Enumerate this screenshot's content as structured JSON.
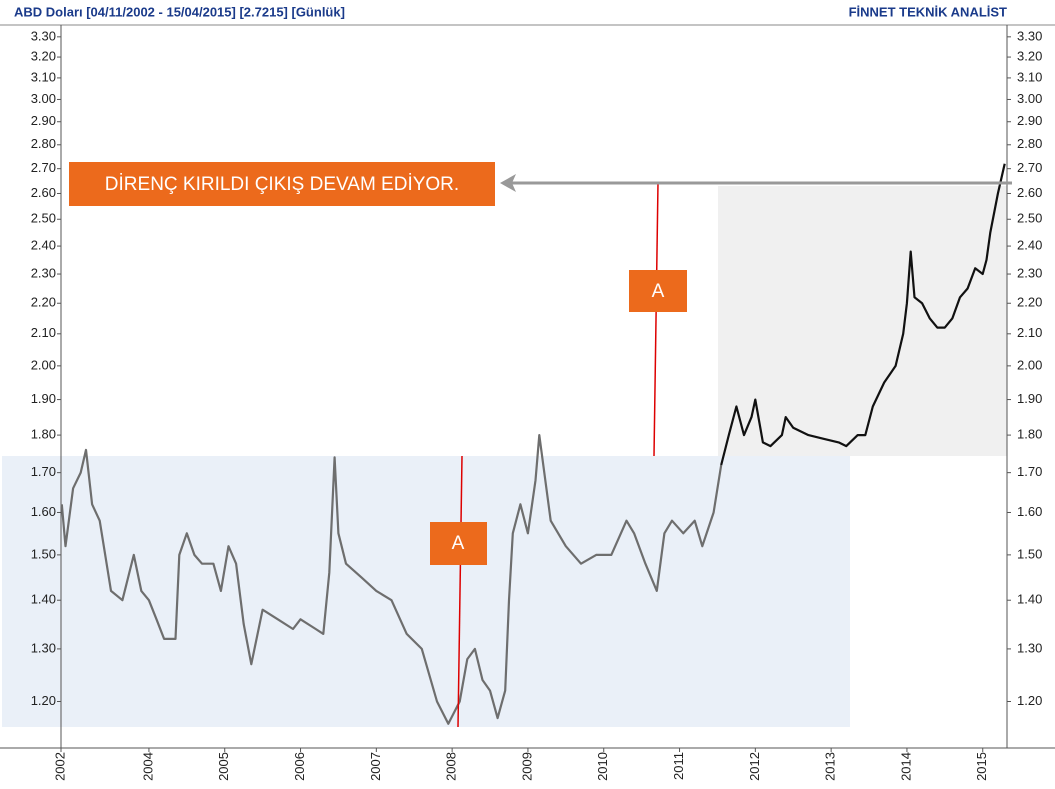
{
  "chart_data": {
    "type": "line",
    "title": "ABD Doları  [04/11/2002 - 15/04/2015]  [2.7215]  [Günlük]",
    "brand": "FİNNET TEKNİK ANALİST",
    "annotations": [
      "DİRENÇ KIRILDI ÇIKIŞ DEVAM EDİYOR.",
      "A",
      "A"
    ],
    "log_scale": true,
    "grid": false,
    "xlim": [
      2002.84,
      2015.32
    ],
    "xticks": [
      {
        "value": 2002.84,
        "label": "2002"
      },
      {
        "value": 2004,
        "label": "2004"
      },
      {
        "value": 2005,
        "label": "2005"
      },
      {
        "value": 2006,
        "label": "2006"
      },
      {
        "value": 2007,
        "label": "2007"
      },
      {
        "value": 2008,
        "label": "2008"
      },
      {
        "value": 2009,
        "label": "2009"
      },
      {
        "value": 2010,
        "label": "2010"
      },
      {
        "value": 2011,
        "label": "2011"
      },
      {
        "value": 2012,
        "label": "2012"
      },
      {
        "value": 2013,
        "label": "2013"
      },
      {
        "value": 2014,
        "label": "2014"
      },
      {
        "value": 2015,
        "label": "2015"
      }
    ],
    "ylim": [
      1.118,
      3.36
    ],
    "yticks": [
      {
        "value": 1.2,
        "label": "1.20"
      },
      {
        "value": 1.3,
        "label": "1.30"
      },
      {
        "value": 1.4,
        "label": "1.40"
      },
      {
        "value": 1.5,
        "label": "1.50"
      },
      {
        "value": 1.6,
        "label": "1.60"
      },
      {
        "value": 1.7,
        "label": "1.70"
      },
      {
        "value": 1.8,
        "label": "1.80"
      },
      {
        "value": 1.9,
        "label": "1.90"
      },
      {
        "value": 2.0,
        "label": "2.00"
      },
      {
        "value": 2.1,
        "label": "2.10"
      },
      {
        "value": 2.2,
        "label": "2.20"
      },
      {
        "value": 2.3,
        "label": "2.30"
      },
      {
        "value": 2.4,
        "label": "2.40"
      },
      {
        "value": 2.5,
        "label": "2.50"
      },
      {
        "value": 2.6,
        "label": "2.60"
      },
      {
        "value": 2.7,
        "label": "2.70"
      },
      {
        "value": 2.8,
        "label": "2.80"
      },
      {
        "value": 2.9,
        "label": "2.90"
      },
      {
        "value": 3.0,
        "label": "3.00"
      },
      {
        "value": 3.1,
        "label": "3.10"
      },
      {
        "value": 3.2,
        "label": "3.20"
      },
      {
        "value": 3.3,
        "label": "3.30"
      }
    ],
    "series": [
      {
        "color": "#6e6e6e",
        "x": [
          2002.85,
          2002.9,
          2003.0,
          2003.1,
          2003.17,
          2003.25,
          2003.35,
          2003.5,
          2003.65,
          2003.8,
          2003.9,
          2004.0,
          2004.1,
          2004.2,
          2004.35,
          2004.4,
          2004.5,
          2004.6,
          2004.7,
          2004.85,
          2004.95,
          2005.05,
          2005.15,
          2005.25,
          2005.35,
          2005.5,
          2005.7,
          2005.9,
          2006.0,
          2006.2,
          2006.3,
          2006.38,
          2006.45,
          2006.5,
          2006.6,
          2006.8,
          2007.0,
          2007.2,
          2007.4,
          2007.6,
          2007.8,
          2007.95,
          2008.1,
          2008.2,
          2008.3,
          2008.4,
          2008.5,
          2008.6,
          2008.7,
          2008.75,
          2008.8,
          2008.9,
          2009.0,
          2009.1,
          2009.15,
          2009.3,
          2009.5,
          2009.7,
          2009.9,
          2010.1,
          2010.3,
          2010.4,
          2010.55,
          2010.7,
          2010.8,
          2010.9,
          2011.05,
          2011.2,
          2011.3,
          2011.45,
          2011.55
        ],
        "values": [
          1.62,
          1.52,
          1.66,
          1.7,
          1.76,
          1.62,
          1.58,
          1.42,
          1.4,
          1.5,
          1.42,
          1.4,
          1.36,
          1.32,
          1.32,
          1.5,
          1.55,
          1.5,
          1.48,
          1.48,
          1.42,
          1.52,
          1.48,
          1.35,
          1.27,
          1.38,
          1.36,
          1.34,
          1.36,
          1.34,
          1.33,
          1.46,
          1.74,
          1.55,
          1.48,
          1.45,
          1.42,
          1.4,
          1.33,
          1.3,
          1.2,
          1.16,
          1.2,
          1.28,
          1.3,
          1.24,
          1.22,
          1.17,
          1.22,
          1.4,
          1.55,
          1.62,
          1.55,
          1.68,
          1.8,
          1.58,
          1.52,
          1.48,
          1.5,
          1.5,
          1.58,
          1.55,
          1.48,
          1.42,
          1.55,
          1.58,
          1.55,
          1.58,
          1.52,
          1.6,
          1.72
        ]
      },
      {
        "color": "#111111",
        "x": [
          2011.55,
          2011.65,
          2011.75,
          2011.85,
          2011.95,
          2012.0,
          2012.1,
          2012.2,
          2012.35,
          2012.4,
          2012.5,
          2012.7,
          2012.9,
          2013.1,
          2013.2,
          2013.35,
          2013.45,
          2013.55,
          2013.7,
          2013.85,
          2013.95,
          2014.0,
          2014.05,
          2014.1,
          2014.2,
          2014.3,
          2014.4,
          2014.5,
          2014.6,
          2014.7,
          2014.8,
          2014.9,
          2015.0,
          2015.05,
          2015.1,
          2015.2,
          2015.29
        ],
        "values": [
          1.72,
          1.8,
          1.88,
          1.8,
          1.85,
          1.9,
          1.78,
          1.77,
          1.8,
          1.85,
          1.82,
          1.8,
          1.79,
          1.78,
          1.77,
          1.8,
          1.8,
          1.88,
          1.95,
          2.0,
          2.1,
          2.2,
          2.38,
          2.22,
          2.2,
          2.15,
          2.12,
          2.12,
          2.15,
          2.22,
          2.25,
          2.32,
          2.3,
          2.35,
          2.45,
          2.6,
          2.72
        ]
      }
    ]
  }
}
